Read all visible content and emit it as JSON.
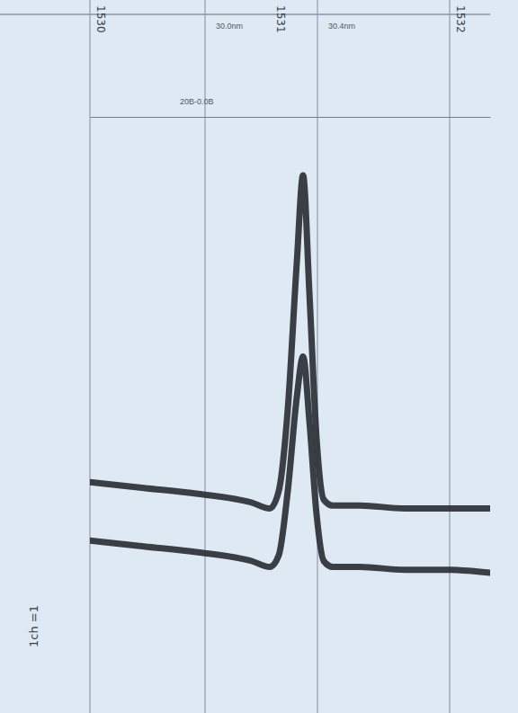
{
  "chart_data": {
    "type": "line",
    "x": [
      1530.0,
      1530.3,
      1530.6,
      1530.9,
      1531.0,
      1531.05,
      1531.1,
      1531.15,
      1531.185,
      1531.22,
      1531.26,
      1531.3,
      1531.35,
      1531.5,
      1531.75,
      1532.0,
      1532.225
    ],
    "series": [
      {
        "color": "#2b2f36",
        "values": [
          3.75,
          3.65,
          3.55,
          3.4,
          3.3,
          3.6,
          5.0,
          7.5,
          9.0,
          7.0,
          4.5,
          3.45,
          3.35,
          3.35,
          3.3,
          3.3,
          3.3
        ]
      },
      {
        "color": "#2b2f36",
        "values": [
          2.75,
          2.65,
          2.55,
          2.4,
          2.3,
          2.5,
          3.6,
          5.2,
          5.9,
          4.8,
          3.2,
          2.4,
          2.3,
          2.3,
          2.25,
          2.25,
          2.2
        ]
      }
    ],
    "xlim": [
      1530,
      1532.225
    ],
    "xticks": [
      1530,
      1530.64,
      1531.265,
      1532
    ],
    "ylim": [
      0,
      10
    ],
    "grid": true,
    "tick_labels": false,
    "header_labels": [
      {
        "text": "30.0nm",
        "x": 1530.64
      },
      {
        "text": "30.4nm",
        "x": 1531.265
      }
    ],
    "handwritten_labels": [
      {
        "text": "1530",
        "x": 1530
      },
      {
        "text": "1531",
        "x": 1531
      },
      {
        "text": "1532",
        "x": 1532
      }
    ],
    "scale_label": "20B-0.0B",
    "side_label": "1ch =1"
  }
}
